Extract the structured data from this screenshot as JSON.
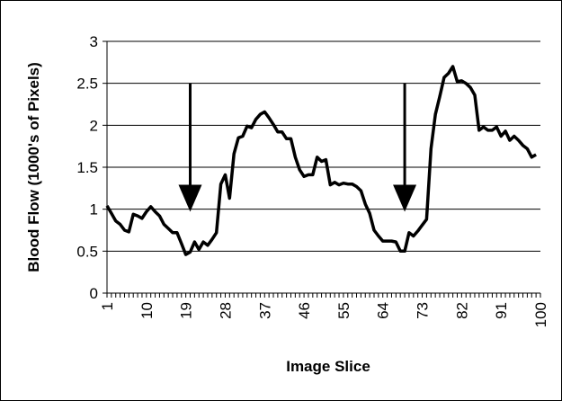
{
  "chart_data": {
    "type": "line",
    "xlabel": "Image Slice",
    "ylabel": "Blood Flow (1000's of Pixels)",
    "xlim": [
      1,
      100
    ],
    "ylim": [
      0,
      3
    ],
    "yticks": [
      0,
      0.5,
      1,
      1.5,
      2,
      2.5,
      3
    ],
    "ytick_labels": [
      "0",
      "0.5",
      "1",
      "1.5",
      "2",
      "2.5",
      "3"
    ],
    "xtick_labels": [
      {
        "value": 1,
        "label": "1"
      },
      {
        "value": 10,
        "label": "10"
      },
      {
        "value": 19,
        "label": "19"
      },
      {
        "value": 28,
        "label": "28"
      },
      {
        "value": 37,
        "label": "37"
      },
      {
        "value": 46,
        "label": "46"
      },
      {
        "value": 55,
        "label": "55"
      },
      {
        "value": 64,
        "label": "64"
      },
      {
        "value": 73,
        "label": "73"
      },
      {
        "value": 82,
        "label": "82"
      },
      {
        "value": 91,
        "label": "91"
      },
      {
        "value": 100,
        "label": "100"
      }
    ],
    "grid": "horizontal",
    "legend": "none",
    "line_color": "#000000",
    "series": [
      {
        "x": [
          1,
          2,
          3,
          4,
          5,
          6,
          7,
          8,
          9,
          10,
          11,
          12,
          13,
          14,
          15,
          16,
          17,
          18,
          19,
          20,
          21,
          22,
          23,
          24,
          25,
          26,
          27,
          28,
          29,
          30,
          31,
          32,
          33,
          34,
          35,
          36,
          37,
          38,
          39,
          40,
          41,
          42,
          43,
          44,
          45,
          46,
          47,
          48,
          49,
          50,
          51,
          52,
          53,
          54,
          55,
          56,
          57,
          58,
          59,
          60,
          61,
          62,
          63,
          64,
          65,
          66,
          67,
          68,
          69,
          70,
          71,
          72,
          73,
          74,
          75,
          76,
          77,
          78,
          79,
          80,
          81,
          82,
          83,
          84,
          85,
          86,
          87,
          88,
          89,
          90,
          91,
          92,
          93,
          94,
          95,
          96,
          97,
          98,
          99
        ],
        "y": [
          1.04,
          0.95,
          0.86,
          0.82,
          0.75,
          0.73,
          0.94,
          0.92,
          0.89,
          0.97,
          1.03,
          0.97,
          0.92,
          0.82,
          0.77,
          0.72,
          0.72,
          0.59,
          0.46,
          0.49,
          0.61,
          0.52,
          0.61,
          0.57,
          0.64,
          0.72,
          1.3,
          1.41,
          1.13,
          1.66,
          1.85,
          1.87,
          1.99,
          1.97,
          2.07,
          2.13,
          2.16,
          2.09,
          2.01,
          1.92,
          1.92,
          1.84,
          1.84,
          1.62,
          1.47,
          1.39,
          1.41,
          1.41,
          1.62,
          1.57,
          1.59,
          1.29,
          1.32,
          1.29,
          1.31,
          1.3,
          1.3,
          1.27,
          1.22,
          1.06,
          0.95,
          0.75,
          0.68,
          0.62,
          0.62,
          0.62,
          0.61,
          0.5,
          0.5,
          0.72,
          0.68,
          0.74,
          0.81,
          0.88,
          1.72,
          2.13,
          2.34,
          2.57,
          2.62,
          2.7,
          2.52,
          2.53,
          2.5,
          2.45,
          2.36,
          1.94,
          1.98,
          1.94,
          1.94,
          1.98,
          1.87,
          1.93,
          1.82,
          1.87,
          1.82,
          1.76,
          1.72,
          1.62,
          1.65
        ]
      }
    ],
    "annotations": [
      {
        "type": "down-arrow",
        "x": 20,
        "y_top": 2.5,
        "y_tip": 0.97
      },
      {
        "type": "down-arrow",
        "x": 69,
        "y_top": 2.5,
        "y_tip": 0.97
      }
    ]
  }
}
